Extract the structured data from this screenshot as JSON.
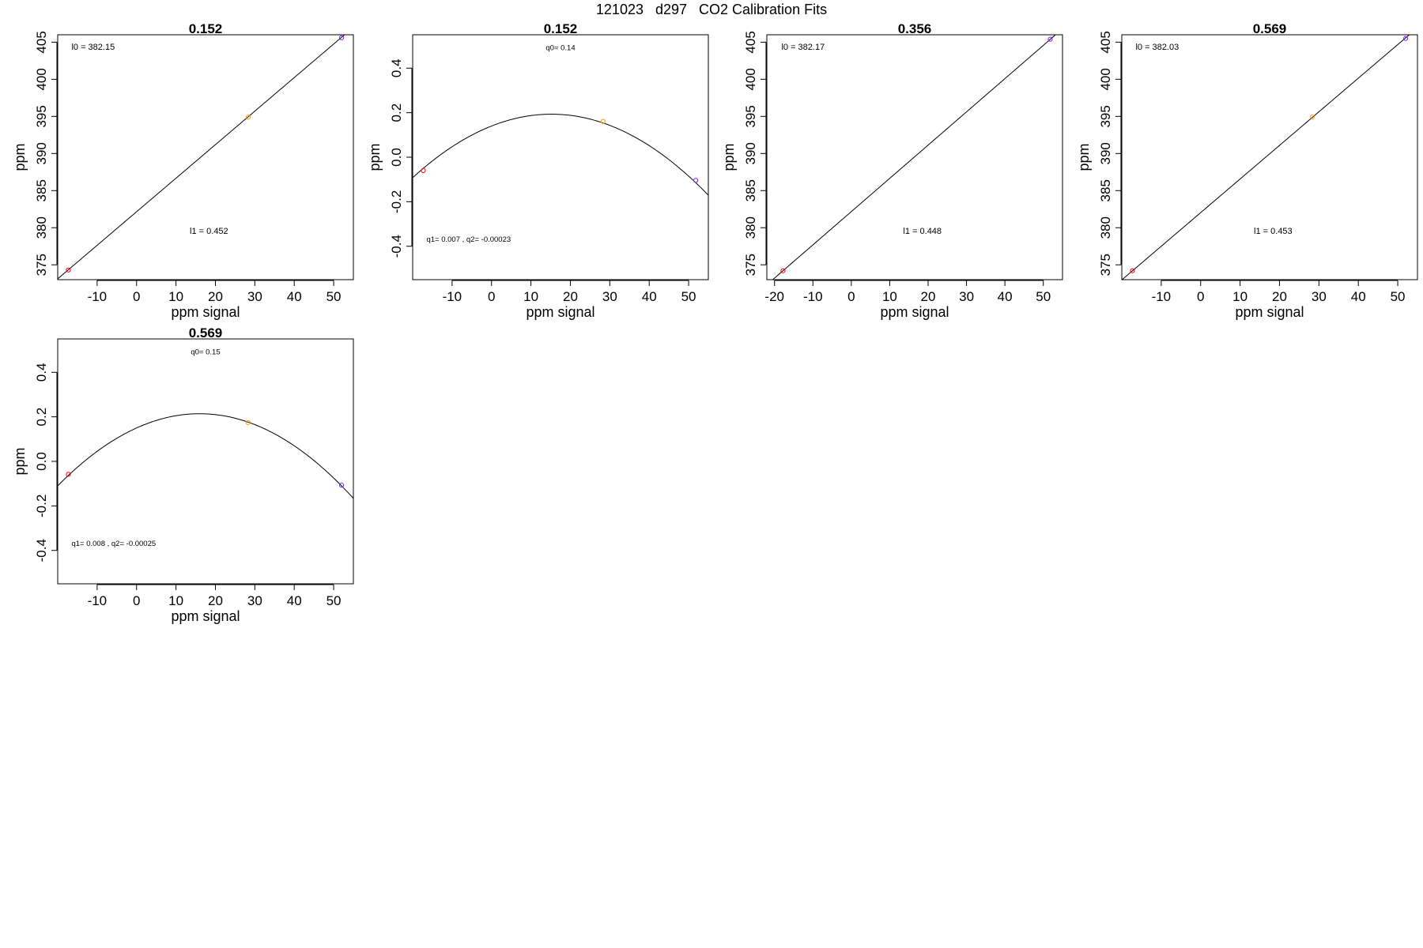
{
  "figure": {
    "title": "121023   d297   CO2 Calibration Fits"
  },
  "chart_data": [
    {
      "type": "scatter",
      "fit": "linear",
      "title": "0.152",
      "xlabel": "ppm signal",
      "ylabel": "ppm",
      "xlim": [
        -20,
        55
      ],
      "ylim": [
        373,
        406
      ],
      "xticks": [
        -10,
        0,
        10,
        20,
        30,
        40,
        50
      ],
      "yticks": [
        375,
        380,
        385,
        390,
        395,
        400,
        405
      ],
      "coef": {
        "intercept": 382.15,
        "slope": 0.452
      },
      "annotations": [
        {
          "text": "l0 =  382.15",
          "x": -16.5,
          "y": 404
        },
        {
          "text": "l1 =  0.452",
          "x": 13.5,
          "y": 379.2
        }
      ],
      "points": [
        {
          "x": -17.3,
          "y": 374.3,
          "color": "#e8000b"
        },
        {
          "x": 28.3,
          "y": 394.9,
          "color": "#ff9900"
        },
        {
          "x": 52.0,
          "y": 405.6,
          "color": "#7d1cff"
        }
      ]
    },
    {
      "type": "scatter",
      "fit": "quadratic",
      "title": "0.152",
      "xlabel": "ppm signal",
      "ylabel": "ppm",
      "xlim": [
        -20,
        55
      ],
      "ylim": [
        -0.55,
        0.55
      ],
      "xticks": [
        -10,
        0,
        10,
        20,
        30,
        40,
        50
      ],
      "yticks": [
        -0.4,
        -0.2,
        0.0,
        0.2,
        0.4
      ],
      "coef": {
        "q0": 0.14,
        "q1": 0.007,
        "q2": -0.00023
      },
      "annotations": [
        {
          "text": "q0= 0.14",
          "x": 17.5,
          "y": 0.48
        },
        {
          "text": "q1= 0.007 , q2= -0.00023",
          "x": -16.5,
          "y": -0.38
        }
      ],
      "points": [
        {
          "x": -17.3,
          "y": -0.06,
          "color": "#e8000b"
        },
        {
          "x": 28.3,
          "y": 0.161,
          "color": "#ff9900"
        },
        {
          "x": 51.8,
          "y": -0.104,
          "color": "#7d1cff"
        }
      ]
    },
    {
      "type": "scatter",
      "fit": "linear",
      "title": "0.356",
      "xlabel": "ppm signal",
      "ylabel": "ppm",
      "xlim": [
        -22,
        55
      ],
      "ylim": [
        373,
        406
      ],
      "xticks": [
        -20,
        -10,
        0,
        10,
        20,
        30,
        40,
        50
      ],
      "yticks": [
        375,
        380,
        385,
        390,
        395,
        400,
        405
      ],
      "coef": {
        "intercept": 382.17,
        "slope": 0.448
      },
      "annotations": [
        {
          "text": "l0 =  382.17",
          "x": -18.2,
          "y": 404
        },
        {
          "text": "l1 =  0.448",
          "x": 13.5,
          "y": 379.2
        }
      ],
      "points": [
        {
          "x": -17.8,
          "y": 374.2,
          "color": "#e8000b"
        },
        {
          "x": 51.8,
          "y": 405.4,
          "color": "#7d1cff"
        }
      ]
    },
    {
      "type": "scatter",
      "fit": "linear",
      "title": "0.569",
      "xlabel": "ppm signal",
      "ylabel": "ppm",
      "xlim": [
        -20,
        55
      ],
      "ylim": [
        373,
        406
      ],
      "xticks": [
        -10,
        0,
        10,
        20,
        30,
        40,
        50
      ],
      "yticks": [
        375,
        380,
        385,
        390,
        395,
        400,
        405
      ],
      "coef": {
        "intercept": 382.03,
        "slope": 0.453
      },
      "annotations": [
        {
          "text": "l0 =  382.03",
          "x": -16.5,
          "y": 404
        },
        {
          "text": "l1 =  0.453",
          "x": 13.5,
          "y": 379.2
        }
      ],
      "points": [
        {
          "x": -17.3,
          "y": 374.2,
          "color": "#e8000b"
        },
        {
          "x": 28.3,
          "y": 394.9,
          "color": "#ff9900"
        },
        {
          "x": 52.0,
          "y": 405.5,
          "color": "#7d1cff"
        }
      ]
    },
    {
      "type": "scatter",
      "fit": "quadratic",
      "title": "0.569",
      "xlabel": "ppm signal",
      "ylabel": "ppm",
      "xlim": [
        -20,
        55
      ],
      "ylim": [
        -0.55,
        0.55
      ],
      "xticks": [
        -10,
        0,
        10,
        20,
        30,
        40,
        50
      ],
      "yticks": [
        -0.4,
        -0.2,
        0.0,
        0.2,
        0.4
      ],
      "coef": {
        "q0": 0.15,
        "q1": 0.008,
        "q2": -0.00025
      },
      "annotations": [
        {
          "text": "q0= 0.15",
          "x": 17.5,
          "y": 0.48
        },
        {
          "text": "q1= 0.008 , q2= -0.00025",
          "x": -16.5,
          "y": -0.38
        }
      ],
      "points": [
        {
          "x": -17.3,
          "y": -0.058,
          "color": "#e8000b"
        },
        {
          "x": 28.3,
          "y": 0.174,
          "color": "#ff9900"
        },
        {
          "x": 52.0,
          "y": -0.107,
          "color": "#7d1cff"
        }
      ]
    }
  ]
}
